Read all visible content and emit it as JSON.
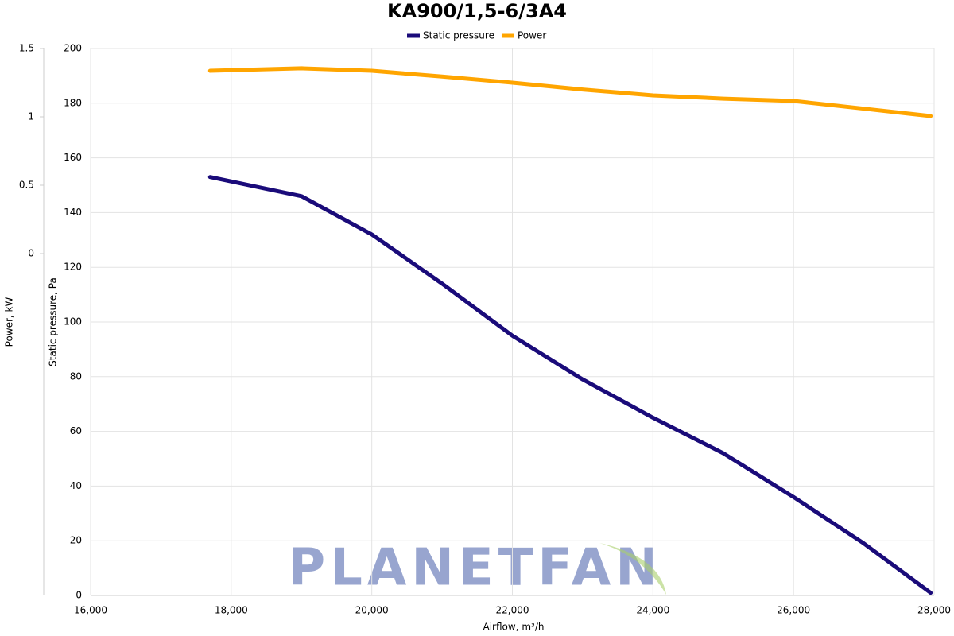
{
  "chart_data": {
    "type": "line",
    "title": "KA900/1,5-6/3A4",
    "x_label": "Airflow, m³/h",
    "y_label": "Static pressure, Pa",
    "y2_label": "Power, kW",
    "watermark": "PLANETFAN",
    "x": [
      17700,
      19000,
      20000,
      21000,
      22000,
      23000,
      24000,
      25000,
      26000,
      27000,
      27950
    ],
    "series": [
      {
        "name": "Static pressure",
        "color": "#1a0b7a",
        "values": [
          153,
          146,
          132,
          114,
          95,
          79,
          65,
          52,
          36,
          19,
          1
        ]
      },
      {
        "name": "Power",
        "color": "#ffa500",
        "axis": "y2",
        "values": [
          1.337,
          1.355,
          1.337,
          1.295,
          1.25,
          1.2,
          1.157,
          1.133,
          1.116,
          1.06,
          1.006
        ]
      }
    ],
    "xlim": [
      16000,
      28000
    ],
    "xticks": [
      {
        "value": 16000,
        "label": "16,000"
      },
      {
        "value": 18000,
        "label": "18,000"
      },
      {
        "value": 20000,
        "label": "20,000"
      },
      {
        "value": 22000,
        "label": "22,000"
      },
      {
        "value": 24000,
        "label": "24,000"
      },
      {
        "value": 26000,
        "label": "26,000"
      },
      {
        "value": 28000,
        "label": "28,000"
      }
    ],
    "ylim": [
      0,
      200
    ],
    "yticks": [
      0,
      20,
      40,
      60,
      80,
      100,
      120,
      140,
      160,
      180,
      200
    ],
    "y2lim": [
      -2.5,
      1.5
    ],
    "y2ticks": [
      0,
      0.5,
      1,
      1.5
    ],
    "grid": true,
    "legend": "top"
  }
}
